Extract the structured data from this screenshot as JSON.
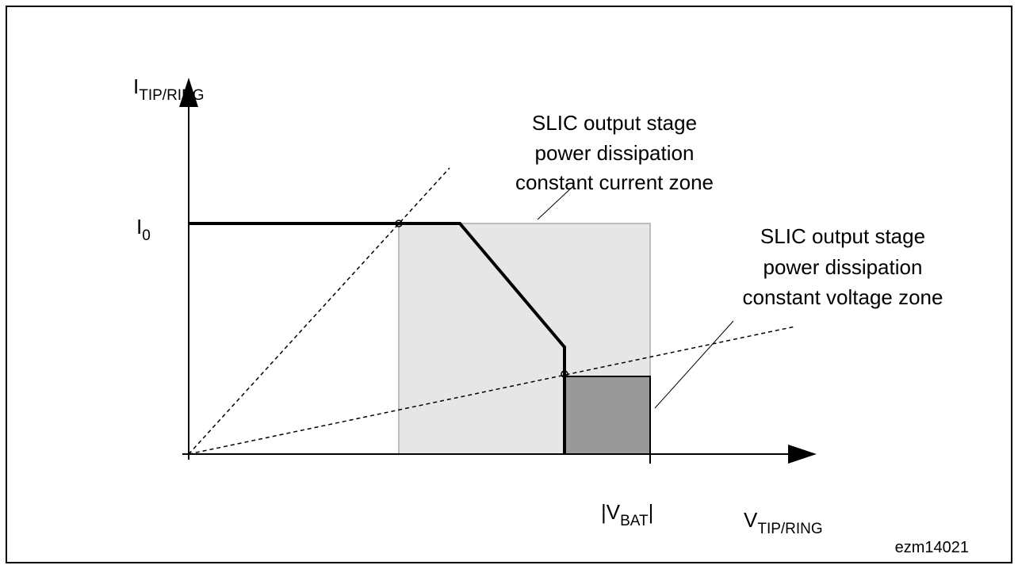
{
  "y_axis": {
    "label": "I",
    "subscript": "TIP/RING"
  },
  "x_axis": {
    "label": "V",
    "subscript": "TIP/RING"
  },
  "current_level": {
    "label": "I",
    "subscript": "0"
  },
  "battery_voltage": {
    "prefix": "|V",
    "subscript": "BAT",
    "suffix": "|"
  },
  "zones": [
    {
      "lines": [
        "SLIC output stage",
        "power dissipation",
        "constant current zone"
      ]
    },
    {
      "lines": [
        "SLIC output stage",
        "power dissipation",
        "constant voltage zone"
      ]
    }
  ],
  "figure_id": "ezm14021"
}
